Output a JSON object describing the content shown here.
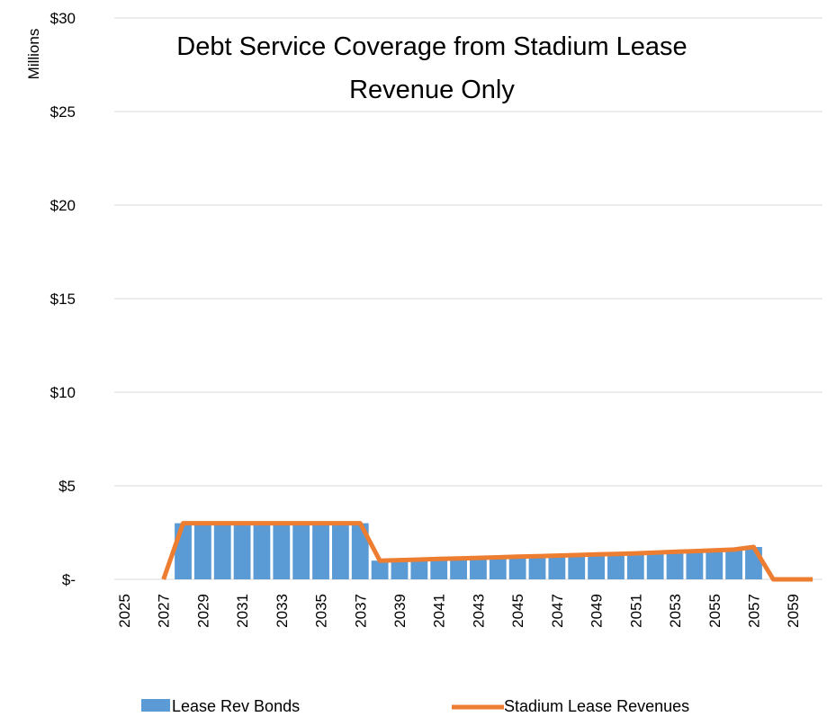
{
  "chart_data": {
    "type": "bar",
    "title_lines": [
      "Debt Service Coverage from Stadium Lease",
      "Revenue Only"
    ],
    "ylabel": "Millions",
    "ylim": [
      0,
      30
    ],
    "y_ticks": [
      0,
      5,
      10,
      15,
      20,
      25,
      30
    ],
    "y_tick_labels": [
      "$-",
      "$5",
      "$10",
      "$15",
      "$20",
      "$25",
      "$30"
    ],
    "grid": true,
    "x": [
      2025,
      2026,
      2027,
      2028,
      2029,
      2030,
      2031,
      2032,
      2033,
      2034,
      2035,
      2036,
      2037,
      2038,
      2039,
      2040,
      2041,
      2042,
      2043,
      2044,
      2045,
      2046,
      2047,
      2048,
      2049,
      2050,
      2051,
      2052,
      2053,
      2054,
      2055,
      2056,
      2057,
      2058,
      2059,
      2060
    ],
    "x_tick_labels": [
      "2025",
      "2027",
      "2029",
      "2031",
      "2033",
      "2035",
      "2037",
      "2039",
      "2041",
      "2043",
      "2045",
      "2047",
      "2049",
      "2051",
      "2053",
      "2055",
      "2057",
      "2059"
    ],
    "legend_position": "bottom",
    "series": [
      {
        "name": "Lease Rev Bonds",
        "type": "bar",
        "color": "#5b9bd5",
        "values": [
          null,
          null,
          null,
          3,
          3,
          3,
          3,
          3,
          3,
          3,
          3,
          3,
          3,
          1,
          1.03,
          1.06,
          1.09,
          1.12,
          1.15,
          1.18,
          1.21,
          1.24,
          1.27,
          1.3,
          1.33,
          1.36,
          1.39,
          1.43,
          1.47,
          1.51,
          1.55,
          1.59,
          1.73,
          null,
          null,
          null
        ]
      },
      {
        "name": "Stadium Lease Revenues",
        "type": "line",
        "color": "#ed7d31",
        "values": [
          null,
          null,
          0,
          3,
          3,
          3,
          3,
          3,
          3,
          3,
          3,
          3,
          3,
          1,
          1.03,
          1.06,
          1.09,
          1.12,
          1.15,
          1.18,
          1.21,
          1.24,
          1.27,
          1.3,
          1.33,
          1.36,
          1.39,
          1.43,
          1.47,
          1.51,
          1.55,
          1.59,
          1.73,
          0,
          0,
          0
        ]
      }
    ]
  }
}
